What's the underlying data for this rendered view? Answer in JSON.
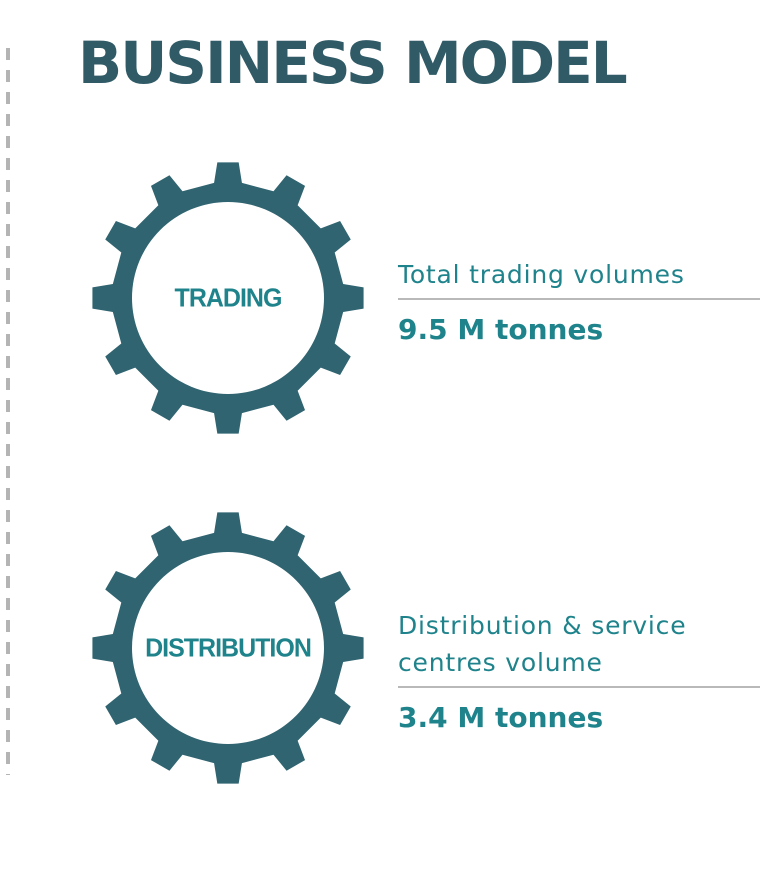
{
  "title": "BUSINESS MODEL",
  "colors": {
    "title": "#2f5a66",
    "gear": "#2f6470",
    "accent": "#1f838c",
    "divider": "#b9b9b9",
    "dashed_line": "#b4b4b4"
  },
  "segments": [
    {
      "gear_icon": "gear-icon",
      "gear_label": "TRADING",
      "stat_label": "Total trading volumes",
      "stat_value": "9.5 M tonnes"
    },
    {
      "gear_icon": "gear-icon",
      "gear_label": "DISTRIBUTION",
      "stat_label_line1": "Distribution & service",
      "stat_label_line2": "centres volume",
      "stat_value": "3.4 M tonnes"
    }
  ]
}
